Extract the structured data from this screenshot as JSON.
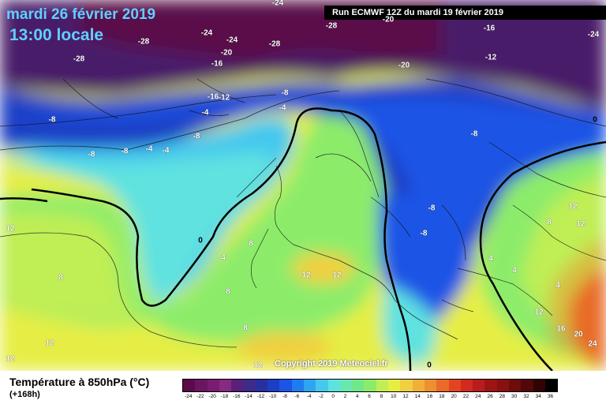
{
  "header": {
    "date": "mardi 26 février 2019",
    "time": "13:00 locale",
    "run": "Run ECMWF 12Z du mardi 19 février 2019"
  },
  "copyright": "Copyright 2019 Meteociel.fr",
  "legend": {
    "title": "Température à 850hPa (°C)",
    "subtitle": "(+168h)",
    "ticks": [
      "-24",
      "-22",
      "-20",
      "-18",
      "-16",
      "-14",
      "-12",
      "-10",
      "-8",
      "-6",
      "-4",
      "-2",
      "0",
      "2",
      "4",
      "6",
      "8",
      "10",
      "12",
      "14",
      "16",
      "18",
      "20",
      "22",
      "24",
      "26",
      "28",
      "30",
      "32",
      "34",
      "36"
    ],
    "colors": [
      "#5a0a4a",
      "#6b1560",
      "#7a1c72",
      "#862a82",
      "#5a1f7a",
      "#3d2a8a",
      "#2a2fa0",
      "#1c3ec4",
      "#1a55e6",
      "#1f7cf0",
      "#2ea5f2",
      "#44c8ee",
      "#5ee2e0",
      "#66e8b0",
      "#6ee88a",
      "#8cec6a",
      "#bfee55",
      "#e6ee44",
      "#f0d040",
      "#f0b038",
      "#ee9030",
      "#ea6a28",
      "#e24420",
      "#d22a1e",
      "#b81c1c",
      "#9e1414",
      "#8a1010",
      "#6e0c0c",
      "#520808",
      "#300404",
      "#000000"
    ]
  },
  "map_labels": [
    {
      "t": "-24"
    },
    {
      "t": "-28"
    },
    {
      "t": "-24"
    },
    {
      "t": "-28"
    },
    {
      "t": "-24"
    },
    {
      "t": "-20"
    },
    {
      "t": "-16"
    },
    {
      "t": "-28"
    },
    {
      "t": "-28"
    },
    {
      "t": "-20"
    },
    {
      "t": "-16"
    },
    {
      "t": "-12"
    },
    {
      "t": "-20"
    },
    {
      "t": "-24"
    },
    {
      "t": "-16"
    },
    {
      "t": "-12"
    },
    {
      "t": "-8"
    },
    {
      "t": "-4"
    },
    {
      "t": "-8"
    },
    {
      "t": "-4"
    },
    {
      "t": "-4"
    },
    {
      "t": "-8"
    },
    {
      "t": "-8"
    },
    {
      "t": "-8"
    },
    {
      "t": "-8"
    },
    {
      "t": "-8"
    },
    {
      "t": "-8"
    },
    {
      "t": "0"
    },
    {
      "t": "0"
    },
    {
      "t": "4"
    },
    {
      "t": "8"
    },
    {
      "t": "4"
    },
    {
      "t": "8"
    },
    {
      "t": "12"
    },
    {
      "t": "12"
    },
    {
      "t": "12"
    },
    {
      "t": "12"
    },
    {
      "t": "8"
    },
    {
      "t": "8"
    },
    {
      "t": "4"
    },
    {
      "t": "8"
    },
    {
      "t": "12"
    },
    {
      "t": "12"
    },
    {
      "t": "12"
    },
    {
      "t": "16"
    },
    {
      "t": "20"
    },
    {
      "t": "24"
    },
    {
      "t": "0"
    },
    {
      "t": "4"
    },
    {
      "t": "12"
    },
    {
      "t": "12"
    },
    {
      "t": "-4"
    }
  ]
}
